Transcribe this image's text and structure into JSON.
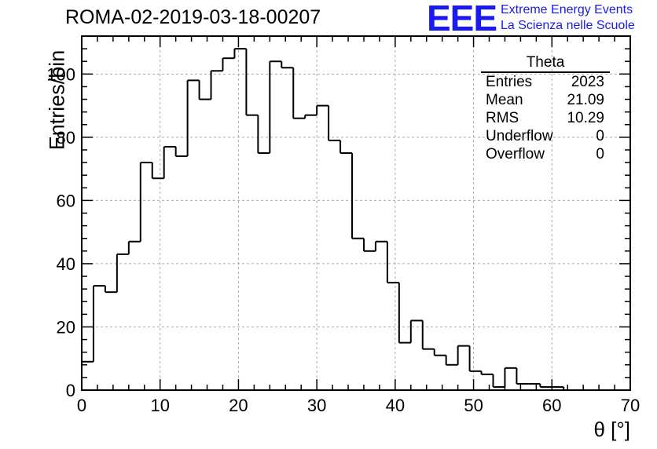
{
  "chart_data": {
    "type": "histogram",
    "title": "ROMA-02-2019-03-18-00207",
    "xlabel": "θ [°]",
    "ylabel": "Entries/bin",
    "xlim": [
      0,
      70
    ],
    "ylim": [
      0,
      112
    ],
    "grid": true,
    "bin_width": 1.5,
    "x_ticks": [
      0,
      10,
      20,
      30,
      40,
      50,
      60,
      70
    ],
    "y_ticks": [
      0,
      20,
      40,
      60,
      80,
      100
    ],
    "values": [
      9,
      33,
      31,
      43,
      47,
      72,
      67,
      77,
      74,
      98,
      92,
      101,
      105,
      108,
      87,
      75,
      104,
      102,
      86,
      87,
      90,
      79,
      75,
      48,
      44,
      47,
      34,
      15,
      22,
      13,
      11,
      8,
      14,
      6,
      5,
      1,
      7,
      2,
      2,
      1,
      1,
      0,
      0,
      0,
      0,
      0,
      0
    ]
  },
  "logo": {
    "mark": "EEE",
    "line1": "Extreme Energy Events",
    "line2": "La Scienza nelle Scuole"
  },
  "stats": {
    "title": "Theta",
    "rows": [
      {
        "label": "Entries",
        "value": "2023"
      },
      {
        "label": "Mean",
        "value": "21.09"
      },
      {
        "label": "RMS",
        "value": "10.29"
      },
      {
        "label": "Underflow",
        "value": "0"
      },
      {
        "label": "Overflow",
        "value": "0"
      }
    ]
  }
}
